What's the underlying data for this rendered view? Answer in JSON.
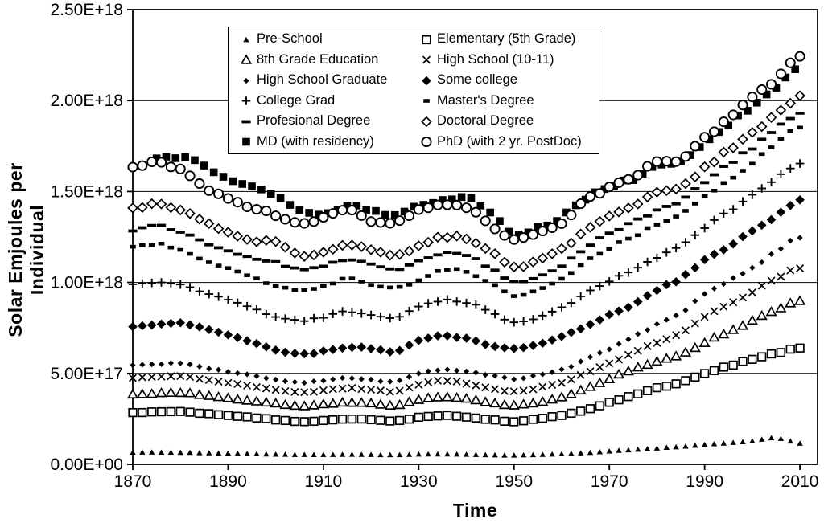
{
  "chart_data": {
    "type": "scatter",
    "title": "",
    "xlabel": "Time",
    "ylabel": "Solar Emjoules per Individual",
    "grid": true,
    "legend_position": "inside-top-center",
    "x_ticks": [
      1870,
      1890,
      1910,
      1930,
      1950,
      1970,
      1990,
      2010
    ],
    "y_ticks": [
      {
        "value": 0.0,
        "label": "0.00E+00"
      },
      {
        "value": 0.5,
        "label": "5.00E+17"
      },
      {
        "value": 1.0,
        "label": "1.00E+18"
      },
      {
        "value": 1.5,
        "label": "1.50E+18"
      },
      {
        "value": 2.0,
        "label": "2.00E+18"
      },
      {
        "value": 2.5,
        "label": "2.50E+18"
      }
    ],
    "xlim": [
      1870,
      2013.7
    ],
    "ylim": [
      0,
      2.5
    ],
    "value_unit": "1e18 solar emjoules per individual",
    "anchor_years": [
      1870,
      1875,
      1880,
      1885,
      1890,
      1895,
      1900,
      1905,
      1910,
      1915,
      1920,
      1925,
      1930,
      1935,
      1940,
      1945,
      1950,
      1955,
      1960,
      1965,
      1970,
      1975,
      1980,
      1985,
      1990,
      1995,
      2000,
      2005,
      2010
    ],
    "series": [
      {
        "name": "Pre-School",
        "marker": "triangle-small-filled",
        "values": [
          0.066,
          0.066,
          0.065,
          0.063,
          0.061,
          0.058,
          0.055,
          0.053,
          0.053,
          0.054,
          0.053,
          0.052,
          0.055,
          0.056,
          0.054,
          0.051,
          0.05,
          0.053,
          0.057,
          0.063,
          0.072,
          0.08,
          0.089,
          0.097,
          0.108,
          0.118,
          0.128,
          0.145,
          0.115
        ]
      },
      {
        "name": "Elementary (5th Grade)",
        "marker": "square-open",
        "values": [
          0.283,
          0.29,
          0.29,
          0.28,
          0.27,
          0.258,
          0.245,
          0.235,
          0.24,
          0.25,
          0.245,
          0.238,
          0.258,
          0.268,
          0.26,
          0.246,
          0.235,
          0.25,
          0.27,
          0.3,
          0.34,
          0.38,
          0.42,
          0.45,
          0.5,
          0.54,
          0.58,
          0.61,
          0.64
        ]
      },
      {
        "name": "8th Grade Education",
        "marker": "triangle-open",
        "values": [
          0.385,
          0.39,
          0.395,
          0.38,
          0.365,
          0.35,
          0.335,
          0.32,
          0.33,
          0.34,
          0.335,
          0.325,
          0.355,
          0.37,
          0.36,
          0.34,
          0.325,
          0.34,
          0.37,
          0.415,
          0.47,
          0.525,
          0.565,
          0.605,
          0.67,
          0.73,
          0.79,
          0.85,
          0.9
        ]
      },
      {
        "name": "High School (10-11)",
        "marker": "x",
        "values": [
          0.475,
          0.48,
          0.485,
          0.465,
          0.45,
          0.43,
          0.41,
          0.395,
          0.405,
          0.42,
          0.41,
          0.4,
          0.44,
          0.46,
          0.445,
          0.42,
          0.4,
          0.42,
          0.45,
          0.5,
          0.555,
          0.615,
          0.67,
          0.72,
          0.81,
          0.88,
          0.95,
          1.02,
          1.08
        ]
      },
      {
        "name": "High School Graduate",
        "marker": "diamond-small-filled",
        "values": [
          0.545,
          0.55,
          0.555,
          0.53,
          0.51,
          0.49,
          0.465,
          0.45,
          0.46,
          0.475,
          0.465,
          0.455,
          0.5,
          0.52,
          0.51,
          0.49,
          0.47,
          0.49,
          0.52,
          0.575,
          0.635,
          0.7,
          0.77,
          0.83,
          0.94,
          1.01,
          1.08,
          1.17,
          1.25
        ]
      },
      {
        "name": "Some college",
        "marker": "diamond-filled",
        "values": [
          0.76,
          0.77,
          0.78,
          0.745,
          0.71,
          0.675,
          0.63,
          0.605,
          0.62,
          0.645,
          0.635,
          0.62,
          0.68,
          0.71,
          0.69,
          0.655,
          0.64,
          0.66,
          0.7,
          0.76,
          0.82,
          0.88,
          0.96,
          1.02,
          1.13,
          1.2,
          1.28,
          1.37,
          1.45
        ]
      },
      {
        "name": "College Grad",
        "marker": "plus",
        "values": [
          0.99,
          1.0,
          0.985,
          0.945,
          0.905,
          0.86,
          0.81,
          0.79,
          0.81,
          0.84,
          0.82,
          0.805,
          0.865,
          0.9,
          0.89,
          0.84,
          0.78,
          0.81,
          0.86,
          0.94,
          1.01,
          1.07,
          1.14,
          1.2,
          1.3,
          1.39,
          1.48,
          1.57,
          1.66
        ]
      },
      {
        "name": "Master's Degree",
        "marker": "dash-small",
        "values": [
          1.19,
          1.21,
          1.18,
          1.12,
          1.08,
          1.03,
          0.98,
          0.96,
          0.98,
          1.02,
          0.99,
          0.97,
          1.01,
          1.07,
          1.06,
          1.0,
          0.93,
          0.96,
          1.02,
          1.11,
          1.19,
          1.25,
          1.32,
          1.37,
          1.47,
          1.56,
          1.66,
          1.76,
          1.86
        ]
      },
      {
        "name": "Profesional Degree",
        "marker": "dash-wide",
        "values": [
          1.29,
          1.31,
          1.28,
          1.22,
          1.18,
          1.13,
          1.11,
          1.07,
          1.09,
          1.13,
          1.1,
          1.07,
          1.12,
          1.16,
          1.15,
          1.08,
          1.0,
          1.03,
          1.09,
          1.19,
          1.27,
          1.33,
          1.4,
          1.45,
          1.55,
          1.65,
          1.74,
          1.84,
          1.94
        ]
      },
      {
        "name": "Doctoral Degree",
        "marker": "diamond-open",
        "values": [
          1.41,
          1.43,
          1.4,
          1.33,
          1.28,
          1.23,
          1.22,
          1.15,
          1.17,
          1.21,
          1.18,
          1.15,
          1.2,
          1.25,
          1.24,
          1.17,
          1.09,
          1.12,
          1.18,
          1.28,
          1.36,
          1.42,
          1.49,
          1.53,
          1.63,
          1.73,
          1.82,
          1.92,
          2.03
        ]
      },
      {
        "name": "MD (with residency)",
        "marker": "square-filled",
        "values": [
          null,
          1.68,
          1.69,
          1.64,
          1.57,
          1.52,
          1.48,
          1.4,
          1.38,
          1.42,
          1.4,
          1.37,
          1.42,
          1.45,
          1.47,
          1.38,
          1.27,
          1.3,
          1.36,
          1.46,
          1.53,
          1.57,
          1.64,
          1.66,
          1.76,
          1.87,
          1.97,
          2.08,
          2.19
        ]
      },
      {
        "name": "PhD (with 2 yr. PostDoc)",
        "marker": "circle-open",
        "values": [
          1.63,
          1.66,
          1.62,
          1.52,
          1.46,
          1.41,
          1.37,
          1.32,
          1.36,
          1.4,
          1.34,
          1.33,
          1.4,
          1.42,
          1.41,
          1.32,
          1.24,
          1.27,
          1.33,
          1.45,
          1.52,
          1.58,
          1.66,
          1.68,
          1.79,
          1.9,
          2.02,
          2.12,
          2.24
        ]
      }
    ]
  }
}
